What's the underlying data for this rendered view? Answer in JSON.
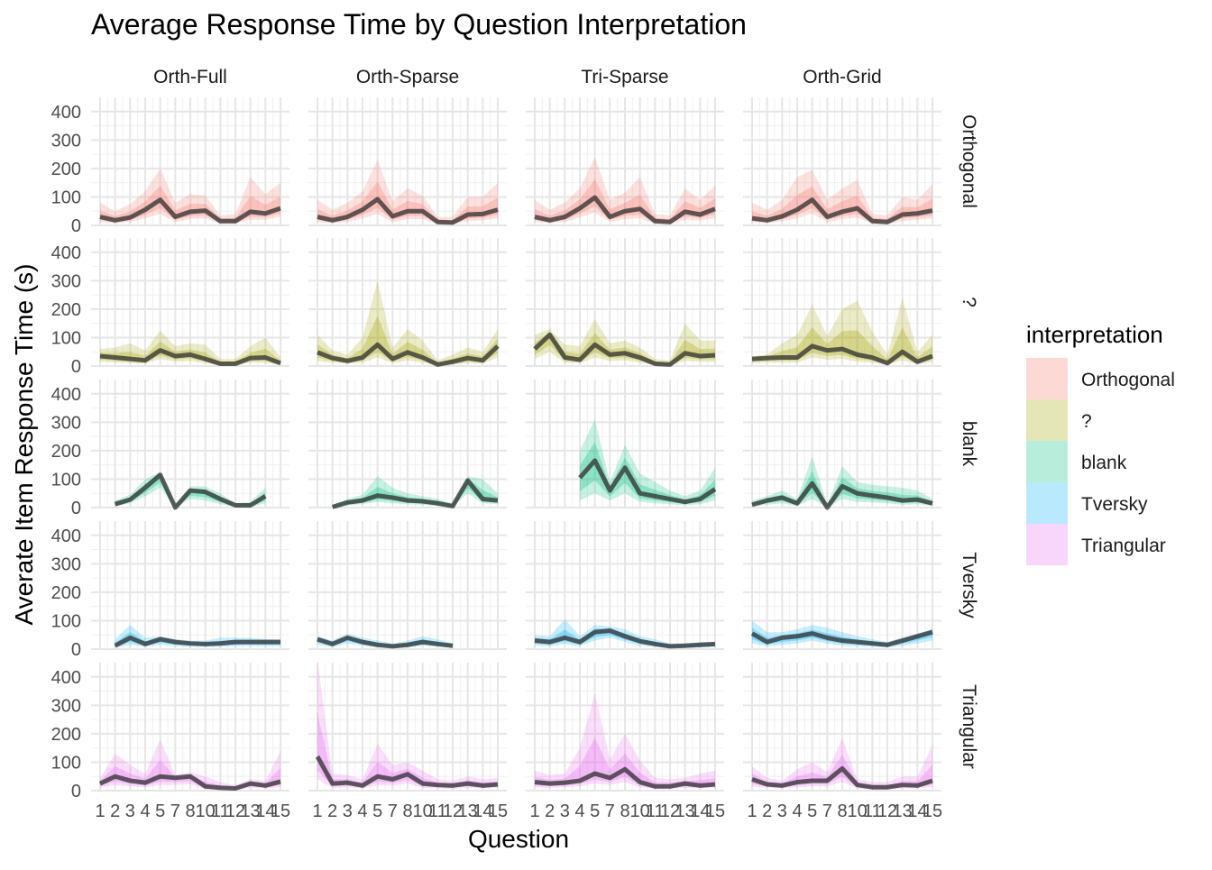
{
  "chart_data": {
    "type": "line",
    "title": "Average Response Time by Question Interpretation",
    "xlabel": "Question",
    "ylabel": "Averate Item Response Time (s)",
    "columns": [
      "Orth-Full",
      "Orth-Sparse",
      "Tri-Sparse",
      "Orth-Grid"
    ],
    "rows": [
      "Orthogonal",
      "?",
      "blank",
      "Tversky",
      "Triangular"
    ],
    "x_ticks": [
      "1",
      "2",
      "3",
      "4",
      "5",
      "7",
      "8",
      "10",
      "11",
      "12",
      "13",
      "14",
      "15"
    ],
    "x_positions": [
      1,
      2,
      3,
      4,
      5,
      6,
      7,
      8,
      9,
      10,
      11,
      12,
      13
    ],
    "x_range": [
      1,
      13
    ],
    "y_ticks": [
      0,
      100,
      200,
      300,
      400
    ],
    "ylim": [
      0,
      450
    ],
    "legend": {
      "title": "interpretation",
      "placement": "right",
      "entries": [
        "Orthogonal",
        "?",
        "blank",
        "Tversky",
        "Triangular"
      ]
    },
    "colors": {
      "Orthogonal": "#F8766D",
      "?": "#A3A500",
      "blank": "#00BF7D",
      "Tversky": "#00B0F6",
      "Triangular": "#E76BF3",
      "mean_line": "#333333"
    },
    "panels": [
      {
        "row": 0,
        "col": 0,
        "x": [
          1,
          2,
          3,
          4,
          5,
          6,
          7,
          8,
          9,
          10,
          11,
          12,
          13
        ],
        "mean": [
          30,
          18,
          28,
          55,
          90,
          30,
          48,
          52,
          15,
          15,
          48,
          42,
          60
        ],
        "lower": [
          12,
          8,
          12,
          25,
          40,
          12,
          22,
          25,
          5,
          5,
          20,
          20,
          30
        ],
        "upper": [
          80,
          50,
          75,
          120,
          200,
          80,
          110,
          105,
          35,
          40,
          170,
          110,
          150
        ]
      },
      {
        "row": 0,
        "col": 1,
        "x": [
          1,
          2,
          3,
          4,
          5,
          6,
          7,
          8,
          9,
          10,
          11,
          12,
          13
        ],
        "mean": [
          30,
          18,
          30,
          55,
          92,
          32,
          50,
          50,
          12,
          10,
          38,
          40,
          55
        ],
        "lower": [
          12,
          8,
          12,
          25,
          40,
          12,
          22,
          22,
          4,
          4,
          15,
          18,
          25
        ],
        "upper": [
          90,
          55,
          80,
          120,
          230,
          85,
          130,
          105,
          30,
          30,
          100,
          100,
          150
        ]
      },
      {
        "row": 0,
        "col": 2,
        "x": [
          1,
          2,
          3,
          4,
          5,
          6,
          7,
          8,
          9,
          10,
          11,
          12,
          13
        ],
        "mean": [
          30,
          18,
          30,
          60,
          98,
          30,
          50,
          58,
          15,
          12,
          48,
          38,
          58
        ],
        "lower": [
          12,
          8,
          12,
          28,
          45,
          12,
          22,
          25,
          5,
          4,
          20,
          18,
          25
        ],
        "upper": [
          90,
          55,
          80,
          130,
          240,
          90,
          115,
          170,
          40,
          35,
          130,
          90,
          140
        ]
      },
      {
        "row": 0,
        "col": 3,
        "x": [
          1,
          2,
          3,
          4,
          5,
          6,
          7,
          8,
          9,
          10,
          11,
          12,
          13
        ],
        "mean": [
          25,
          18,
          32,
          55,
          90,
          30,
          48,
          60,
          15,
          12,
          38,
          42,
          52
        ],
        "lower": [
          10,
          8,
          14,
          25,
          42,
          12,
          22,
          28,
          5,
          4,
          15,
          20,
          25
        ],
        "upper": [
          80,
          55,
          90,
          170,
          195,
          90,
          130,
          160,
          40,
          35,
          100,
          90,
          145
        ]
      },
      {
        "row": 1,
        "col": 0,
        "x": [
          1,
          2,
          3,
          4,
          5,
          6,
          7,
          8,
          9,
          10,
          11,
          12,
          13
        ],
        "mean": [
          35,
          30,
          25,
          20,
          55,
          35,
          40,
          25,
          8,
          8,
          28,
          30,
          10
        ],
        "lower": [
          15,
          12,
          10,
          8,
          25,
          15,
          18,
          10,
          3,
          3,
          12,
          12,
          4
        ],
        "upper": [
          60,
          65,
          80,
          55,
          125,
          70,
          80,
          75,
          25,
          25,
          70,
          100,
          30
        ]
      },
      {
        "row": 1,
        "col": 1,
        "x": [
          1,
          2,
          3,
          4,
          5,
          6,
          7,
          8,
          9,
          10,
          11,
          12,
          13
        ],
        "mean": [
          48,
          28,
          18,
          30,
          75,
          25,
          48,
          30,
          5,
          15,
          28,
          20,
          70
        ],
        "lower": [
          18,
          12,
          8,
          12,
          30,
          10,
          20,
          12,
          2,
          5,
          10,
          8,
          30
        ],
        "upper": [
          110,
          55,
          40,
          100,
          300,
          65,
          130,
          90,
          20,
          40,
          65,
          50,
          130
        ]
      },
      {
        "row": 1,
        "col": 2,
        "x": [
          1,
          2,
          3,
          4,
          5,
          6,
          7,
          8,
          9,
          10,
          11,
          12,
          13
        ],
        "mean": [
          60,
          110,
          30,
          22,
          75,
          40,
          45,
          30,
          8,
          5,
          45,
          35,
          38
        ],
        "lower": [
          25,
          50,
          12,
          10,
          30,
          18,
          20,
          12,
          3,
          2,
          18,
          15,
          15
        ],
        "upper": [
          110,
          130,
          75,
          70,
          165,
          80,
          90,
          65,
          25,
          20,
          150,
          90,
          90
        ]
      },
      {
        "row": 1,
        "col": 3,
        "x": [
          1,
          2,
          3,
          4,
          5,
          6,
          7,
          8,
          9,
          10,
          11,
          12,
          13
        ],
        "mean": [
          25,
          28,
          30,
          30,
          70,
          55,
          60,
          40,
          30,
          10,
          50,
          15,
          35
        ],
        "lower": [
          10,
          12,
          12,
          12,
          30,
          22,
          25,
          15,
          12,
          4,
          20,
          6,
          14
        ],
        "upper": [
          35,
          40,
          80,
          110,
          215,
          105,
          200,
          230,
          120,
          40,
          240,
          50,
          110
        ]
      },
      {
        "row": 2,
        "col": 0,
        "x": [
          2,
          3,
          4,
          5,
          6,
          7,
          8,
          9,
          10,
          11,
          12
        ],
        "mean": [
          12,
          28,
          70,
          115,
          0,
          60,
          55,
          30,
          8,
          8,
          40
        ],
        "lower": [
          5,
          15,
          40,
          70,
          0,
          30,
          25,
          12,
          3,
          3,
          15
        ],
        "upper": [
          25,
          45,
          100,
          125,
          10,
          75,
          75,
          50,
          15,
          20,
          70
        ]
      },
      {
        "row": 2,
        "col": 1,
        "x": [
          2,
          3,
          4,
          5,
          6,
          7,
          8,
          9,
          10,
          11,
          12,
          13
        ],
        "mean": [
          2,
          18,
          25,
          42,
          35,
          25,
          22,
          15,
          5,
          95,
          30,
          25
        ],
        "lower": [
          0,
          8,
          12,
          20,
          15,
          12,
          10,
          6,
          2,
          50,
          15,
          12
        ],
        "upper": [
          10,
          30,
          45,
          110,
          70,
          50,
          40,
          30,
          15,
          110,
          100,
          50
        ]
      },
      {
        "row": 2,
        "col": 2,
        "x": [
          4,
          5,
          6,
          7,
          8,
          9,
          10,
          11,
          12,
          13
        ],
        "mean": [
          105,
          165,
          60,
          140,
          50,
          40,
          30,
          20,
          30,
          65
        ],
        "lower": [
          25,
          50,
          25,
          50,
          20,
          15,
          12,
          8,
          12,
          25
        ],
        "upper": [
          200,
          310,
          90,
          220,
          120,
          90,
          60,
          40,
          60,
          140
        ]
      },
      {
        "row": 2,
        "col": 3,
        "x": [
          1,
          2,
          3,
          4,
          5,
          6,
          7,
          8,
          9,
          10,
          11,
          12,
          13
        ],
        "mean": [
          10,
          25,
          35,
          15,
          85,
          0,
          75,
          50,
          42,
          35,
          25,
          28,
          15
        ],
        "lower": [
          4,
          10,
          15,
          6,
          30,
          0,
          30,
          20,
          18,
          15,
          10,
          12,
          6
        ],
        "upper": [
          25,
          40,
          60,
          30,
          180,
          10,
          145,
          90,
          80,
          75,
          70,
          60,
          30
        ]
      },
      {
        "row": 3,
        "col": 0,
        "x": [
          2,
          3,
          4,
          5,
          6,
          7,
          8,
          9,
          10,
          11,
          12,
          13
        ],
        "mean": [
          12,
          40,
          18,
          35,
          25,
          20,
          18,
          20,
          25,
          25,
          25,
          25
        ],
        "lower": [
          5,
          15,
          8,
          15,
          10,
          8,
          8,
          8,
          10,
          10,
          10,
          10
        ],
        "upper": [
          35,
          85,
          40,
          45,
          35,
          30,
          30,
          40,
          40,
          40,
          35,
          35
        ]
      },
      {
        "row": 3,
        "col": 1,
        "x": [
          1,
          2,
          3,
          4,
          5,
          6,
          7,
          8,
          9,
          10
        ],
        "mean": [
          35,
          18,
          40,
          25,
          15,
          10,
          15,
          25,
          18,
          12
        ],
        "lower": [
          15,
          8,
          20,
          12,
          6,
          4,
          6,
          12,
          8,
          5
        ],
        "upper": [
          45,
          30,
          55,
          40,
          30,
          20,
          30,
          45,
          35,
          20
        ]
      },
      {
        "row": 3,
        "col": 2,
        "x": [
          1,
          2,
          3,
          4,
          5,
          6,
          7,
          8,
          9,
          10,
          11,
          12,
          13
        ],
        "mean": [
          30,
          25,
          40,
          25,
          60,
          65,
          45,
          28,
          18,
          10,
          12,
          15,
          18
        ],
        "lower": [
          12,
          10,
          18,
          10,
          30,
          40,
          25,
          12,
          8,
          4,
          5,
          6,
          8
        ],
        "upper": [
          50,
          45,
          105,
          45,
          85,
          80,
          70,
          45,
          35,
          20,
          20,
          25,
          25
        ]
      },
      {
        "row": 3,
        "col": 3,
        "x": [
          1,
          2,
          3,
          4,
          5,
          6,
          7,
          8,
          9,
          10,
          11,
          12,
          13
        ],
        "mean": [
          55,
          25,
          40,
          45,
          55,
          40,
          30,
          25,
          20,
          15,
          30,
          45,
          60
        ],
        "lower": [
          20,
          10,
          15,
          20,
          30,
          20,
          12,
          10,
          8,
          6,
          12,
          20,
          30
        ],
        "upper": [
          100,
          60,
          60,
          70,
          85,
          75,
          60,
          45,
          35,
          25,
          40,
          55,
          70
        ]
      },
      {
        "row": 4,
        "col": 0,
        "x": [
          1,
          2,
          3,
          4,
          5,
          6,
          7,
          8,
          9,
          10,
          11,
          12,
          13
        ],
        "mean": [
          25,
          50,
          35,
          28,
          50,
          45,
          50,
          15,
          10,
          8,
          25,
          18,
          32
        ],
        "lower": [
          10,
          20,
          15,
          12,
          20,
          20,
          22,
          6,
          4,
          3,
          10,
          8,
          12
        ],
        "upper": [
          45,
          130,
          90,
          60,
          180,
          55,
          65,
          50,
          30,
          20,
          40,
          35,
          140
        ]
      },
      {
        "row": 4,
        "col": 1,
        "x": [
          1,
          2,
          3,
          4,
          5,
          6,
          7,
          8,
          9,
          10,
          11,
          12,
          13
        ],
        "mean": [
          120,
          25,
          28,
          18,
          50,
          40,
          58,
          25,
          20,
          18,
          25,
          18,
          22
        ],
        "lower": [
          40,
          10,
          12,
          8,
          20,
          18,
          25,
          10,
          8,
          6,
          10,
          8,
          10
        ],
        "upper": [
          460,
          60,
          55,
          40,
          165,
          90,
          100,
          70,
          40,
          35,
          50,
          40,
          45
        ]
      },
      {
        "row": 4,
        "col": 2,
        "x": [
          1,
          2,
          3,
          4,
          5,
          6,
          7,
          8,
          9,
          10,
          11,
          12,
          13
        ],
        "mean": [
          30,
          25,
          28,
          35,
          60,
          45,
          75,
          30,
          15,
          15,
          25,
          18,
          22
        ],
        "lower": [
          12,
          10,
          12,
          15,
          25,
          20,
          30,
          12,
          6,
          6,
          10,
          8,
          10
        ],
        "upper": [
          70,
          55,
          60,
          150,
          340,
          110,
          200,
          105,
          45,
          40,
          45,
          60,
          70
        ]
      },
      {
        "row": 4,
        "col": 3,
        "x": [
          1,
          2,
          3,
          4,
          5,
          6,
          7,
          8,
          9,
          10,
          11,
          12,
          13
        ],
        "mean": [
          40,
          22,
          18,
          30,
          35,
          35,
          78,
          20,
          12,
          12,
          20,
          18,
          35
        ],
        "lower": [
          15,
          10,
          8,
          12,
          15,
          15,
          30,
          8,
          5,
          5,
          8,
          8,
          14
        ],
        "upper": [
          85,
          45,
          35,
          75,
          100,
          65,
          185,
          40,
          30,
          30,
          50,
          50,
          160
        ]
      }
    ]
  }
}
